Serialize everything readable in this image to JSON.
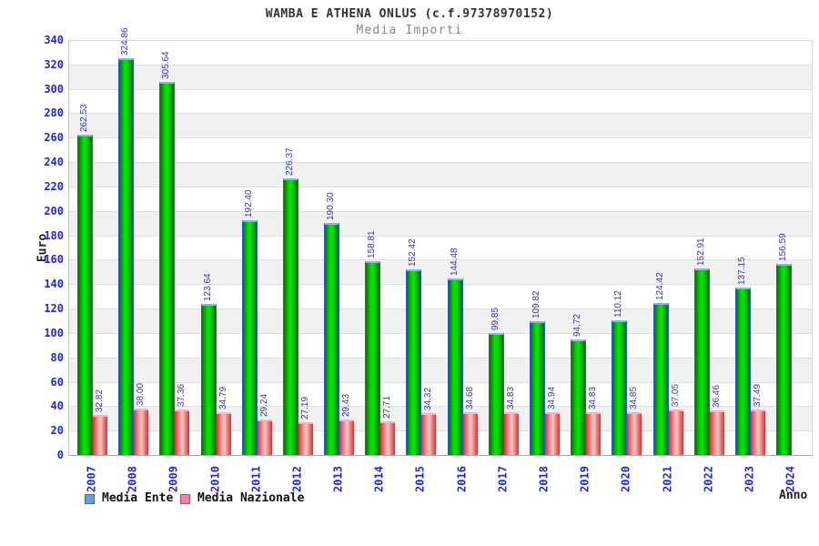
{
  "chart_data": {
    "type": "bar",
    "title": "WAMBA E ATHENA ONLUS (c.f.97378970152)",
    "subtitle": "Media Importi",
    "xlabel": "Anno",
    "ylabel": "Euro",
    "ylim": [
      0,
      340
    ],
    "ytick_step": 20,
    "grid": true,
    "legend_position": "bottom-left",
    "value_label_decimals": 2,
    "categories": [
      "2007",
      "2008",
      "2009",
      "2010",
      "2011",
      "2012",
      "2013",
      "2014",
      "2015",
      "2016",
      "2017",
      "2018",
      "2019",
      "2020",
      "2021",
      "2022",
      "2023",
      "2024"
    ],
    "series": [
      {
        "name": "Media Ente",
        "legend_color": "#64a0dc",
        "values": [
          262.53,
          324.86,
          305.64,
          123.64,
          192.4,
          226.37,
          190.3,
          158.81,
          152.42,
          144.48,
          99.85,
          109.82,
          94.72,
          110.12,
          124.42,
          152.91,
          137.15,
          156.59
        ]
      },
      {
        "name": "Media Nazionale",
        "legend_color": "#ee82ae",
        "values": [
          32.82,
          38.0,
          37.36,
          34.79,
          29.24,
          27.19,
          29.43,
          27.71,
          34.32,
          34.68,
          34.83,
          34.94,
          34.83,
          34.85,
          37.05,
          36.46,
          37.49,
          null
        ]
      }
    ]
  },
  "colors": {
    "tick_label": "#2424d8",
    "value_label": "#3636a4",
    "title": "#333333",
    "subtitle": "#878787",
    "axis_title": "#222222",
    "band_gray": "#f1f1f1",
    "band_white": "#ffffff"
  }
}
